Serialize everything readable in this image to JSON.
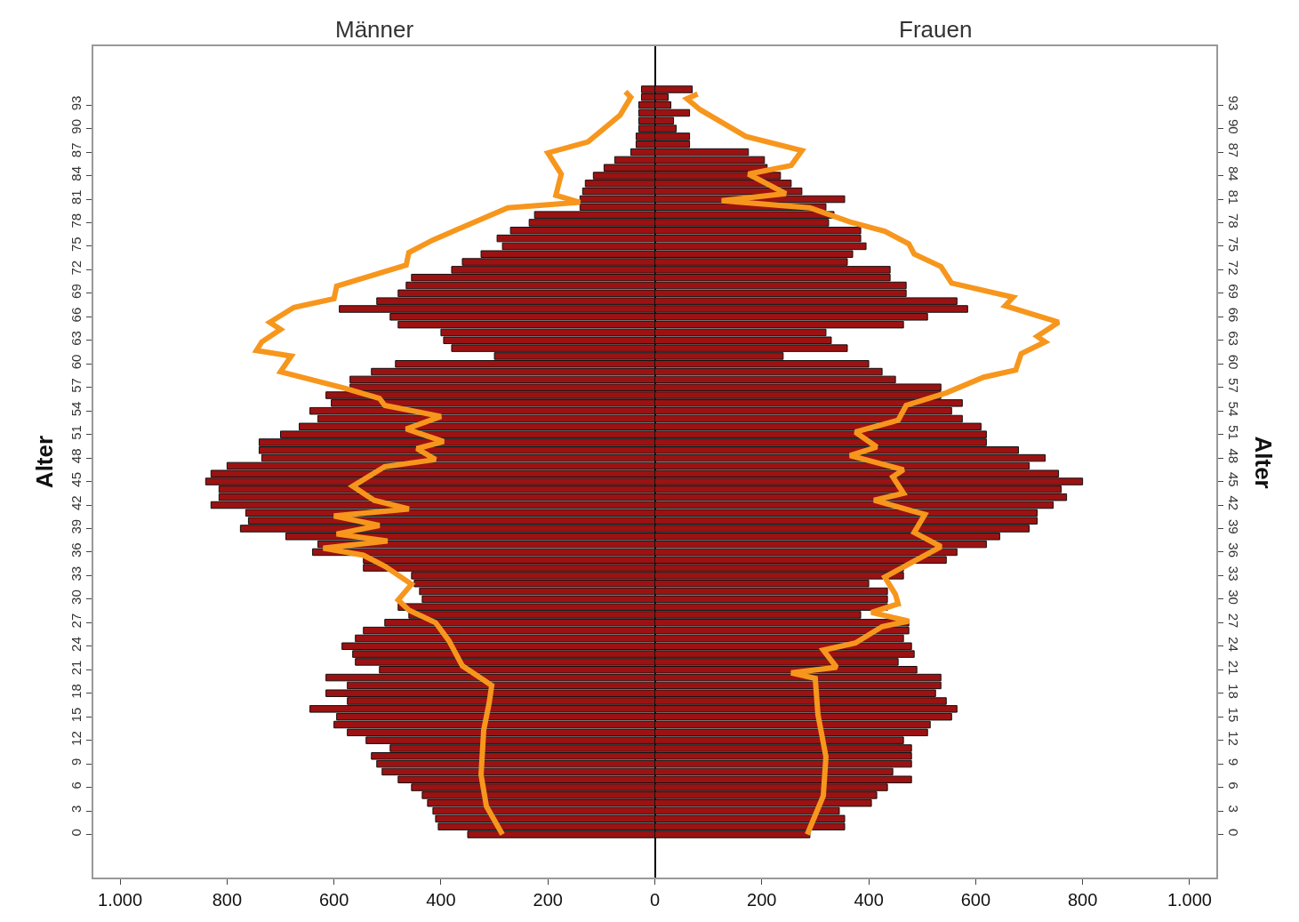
{
  "chart_data": {
    "type": "bar",
    "orientation": "horizontal",
    "stacked": true,
    "annotations": [
      "Männer",
      "Frauen"
    ],
    "ylabel": "Alter",
    "y2label": "Alter",
    "x": [
      0,
      1,
      2,
      3,
      4,
      5,
      6,
      7,
      8,
      9,
      10,
      11,
      12,
      13,
      14,
      15,
      16,
      17,
      18,
      19,
      20,
      21,
      22,
      23,
      24,
      25,
      26,
      27,
      28,
      29,
      30,
      31,
      32,
      33,
      34,
      35,
      36,
      37,
      38,
      39,
      40,
      41,
      42,
      43,
      44,
      45,
      46,
      47,
      48,
      49,
      50,
      51,
      52,
      53,
      54,
      55,
      56,
      57,
      58,
      59,
      60,
      61,
      62,
      63,
      64,
      65,
      66,
      67,
      68,
      69,
      70,
      71,
      72,
      73,
      74,
      75,
      76,
      77,
      78,
      79,
      80,
      81,
      82,
      83,
      84,
      85,
      86,
      87,
      88,
      89,
      90,
      91,
      92,
      93,
      94,
      95
    ],
    "series": [
      {
        "color": "#9c1212",
        "values": [
          -350,
          -405,
          -410,
          -415,
          -425,
          -435,
          -455,
          -480,
          -510,
          -520,
          -530,
          -495,
          -540,
          -575,
          -600,
          -595,
          -645,
          -575,
          -615,
          -575,
          -615,
          -515,
          -560,
          -565,
          -585,
          -560,
          -545,
          -505,
          -460,
          -480,
          -435,
          -440,
          -450,
          -455,
          -545,
          -545,
          -640,
          -630,
          -690,
          -775,
          -760,
          -765,
          -830,
          -815,
          -815,
          -840,
          -830,
          -800,
          -735,
          -740,
          -740,
          -700,
          -665,
          -630,
          -645,
          -605,
          -615,
          -570,
          -570,
          -530,
          -485,
          -300,
          -380,
          -395,
          -400,
          -480,
          -495,
          -590,
          -520,
          -480,
          -465,
          -455,
          -380,
          -360,
          -325,
          -285,
          -295,
          -270,
          -235,
          -225,
          -140,
          -140,
          -135,
          -130,
          -115,
          -95,
          -75,
          -45,
          -35,
          -35,
          -30,
          -30,
          -30,
          -30,
          -25,
          -25
        ]
      },
      {
        "color": "#9c1212",
        "values": [
          290,
          355,
          355,
          345,
          405,
          415,
          435,
          480,
          445,
          480,
          480,
          480,
          465,
          510,
          515,
          555,
          565,
          545,
          525,
          535,
          535,
          490,
          455,
          485,
          480,
          465,
          475,
          475,
          385,
          435,
          435,
          435,
          400,
          465,
          465,
          545,
          565,
          620,
          645,
          700,
          715,
          715,
          745,
          770,
          760,
          800,
          755,
          700,
          730,
          680,
          620,
          620,
          610,
          575,
          555,
          575,
          535,
          535,
          450,
          425,
          400,
          240,
          360,
          330,
          320,
          465,
          510,
          585,
          565,
          470,
          470,
          440,
          440,
          360,
          370,
          395,
          385,
          385,
          325,
          335,
          320,
          355,
          275,
          255,
          235,
          210,
          205,
          175,
          65,
          65,
          40,
          35,
          65,
          30,
          25,
          70
        ]
      },
      {
        "type": "line",
        "color": "#f7961d",
        "x": [
          0,
          3.6,
          7.6,
          13.3,
          16.7,
          19,
          21.5,
          24.7,
          27,
          28.6,
          29.9,
          31.9,
          34.2,
          35.6,
          36.5,
          37.4,
          38.3,
          39.4,
          40.6,
          41.5,
          42.6,
          44.4,
          46.9,
          47.8,
          49.2,
          50.1,
          51.7,
          53.3,
          54.7,
          55.6,
          56.9,
          59,
          61,
          61.7,
          62.8,
          64.4,
          65.3,
          67.2,
          68.3,
          69.9,
          72.6,
          74.2,
          75.8,
          79.9,
          80.6,
          81.5,
          84.2,
          86.9,
          88.3,
          91.7,
          94,
          94.7
        ],
        "values": [
          -285,
          -315,
          -325,
          -320,
          -310,
          -305,
          -360,
          -385,
          -410,
          -460,
          -480,
          -455,
          -505,
          -545,
          -620,
          -500,
          -595,
          -515,
          -600,
          -460,
          -525,
          -565,
          -505,
          -410,
          -445,
          -395,
          -465,
          -400,
          -505,
          -515,
          -580,
          -700,
          -680,
          -745,
          -735,
          -700,
          -720,
          -675,
          -600,
          -595,
          -465,
          -460,
          -415,
          -275,
          -140,
          -185,
          -175,
          -200,
          -125,
          -65,
          -45,
          -55
        ]
      },
      {
        "type": "line",
        "axis": "y2",
        "color": "#f7961d",
        "x": [
          0,
          4.9,
          9.9,
          15.3,
          19.9,
          20.6,
          21.3,
          23.5,
          24.4,
          26.5,
          27.2,
          28.3,
          29.4,
          30.6,
          32.8,
          36.7,
          38.5,
          40.8,
          42.6,
          43.5,
          45.6,
          46.5,
          48.3,
          49.4,
          51.3,
          52.8,
          54.7,
          56.3,
          58.3,
          59.2,
          61.3,
          62.8,
          63.5,
          65.3,
          67.4,
          68.5,
          70.3,
          72.4,
          74,
          75.3,
          76.9,
          78.1,
          79.9,
          80.8,
          81.7,
          84.2,
          85.3,
          87.2,
          89,
          92.4,
          93.8,
          94.4
        ],
        "values": [
          285,
          315,
          320,
          305,
          300,
          255,
          340,
          315,
          375,
          425,
          475,
          405,
          455,
          450,
          430,
          535,
          485,
          505,
          410,
          465,
          445,
          465,
          365,
          415,
          375,
          455,
          470,
          545,
          615,
          675,
          685,
          730,
          715,
          755,
          655,
          670,
          555,
          535,
          485,
          475,
          430,
          365,
          290,
          125,
          245,
          175,
          255,
          275,
          170,
          85,
          60,
          80
        ]
      }
    ],
    "xlim": [
      -1050,
      1050
    ],
    "xticks": [
      {
        "value": -1000,
        "label": "1.000"
      },
      {
        "value": -800,
        "label": "800"
      },
      {
        "value": -600,
        "label": "600"
      },
      {
        "value": -400,
        "label": "400"
      },
      {
        "value": -200,
        "label": "200"
      },
      {
        "value": 0,
        "label": "0"
      },
      {
        "value": 200,
        "label": "200"
      },
      {
        "value": 400,
        "label": "400"
      },
      {
        "value": 600,
        "label": "600"
      },
      {
        "value": 800,
        "label": "800"
      },
      {
        "value": 1000,
        "label": "1.000"
      }
    ],
    "ylim": [
      -5.5,
      100.5
    ],
    "yticks": [
      0,
      3,
      6,
      9,
      12,
      15,
      18,
      21,
      24,
      27,
      30,
      33,
      36,
      39,
      42,
      45,
      48,
      51,
      54,
      57,
      60,
      63,
      66,
      69,
      72,
      75,
      78,
      81,
      84,
      87,
      90,
      93
    ],
    "y2lim": [
      -5.5,
      100.5
    ],
    "y2ticks": [
      0,
      3,
      6,
      9,
      12,
      15,
      18,
      21,
      24,
      27,
      30,
      33,
      36,
      39,
      42,
      45,
      48,
      51,
      54,
      57,
      60,
      63,
      66,
      69,
      72,
      75,
      78,
      81,
      84,
      87,
      90,
      93
    ]
  }
}
